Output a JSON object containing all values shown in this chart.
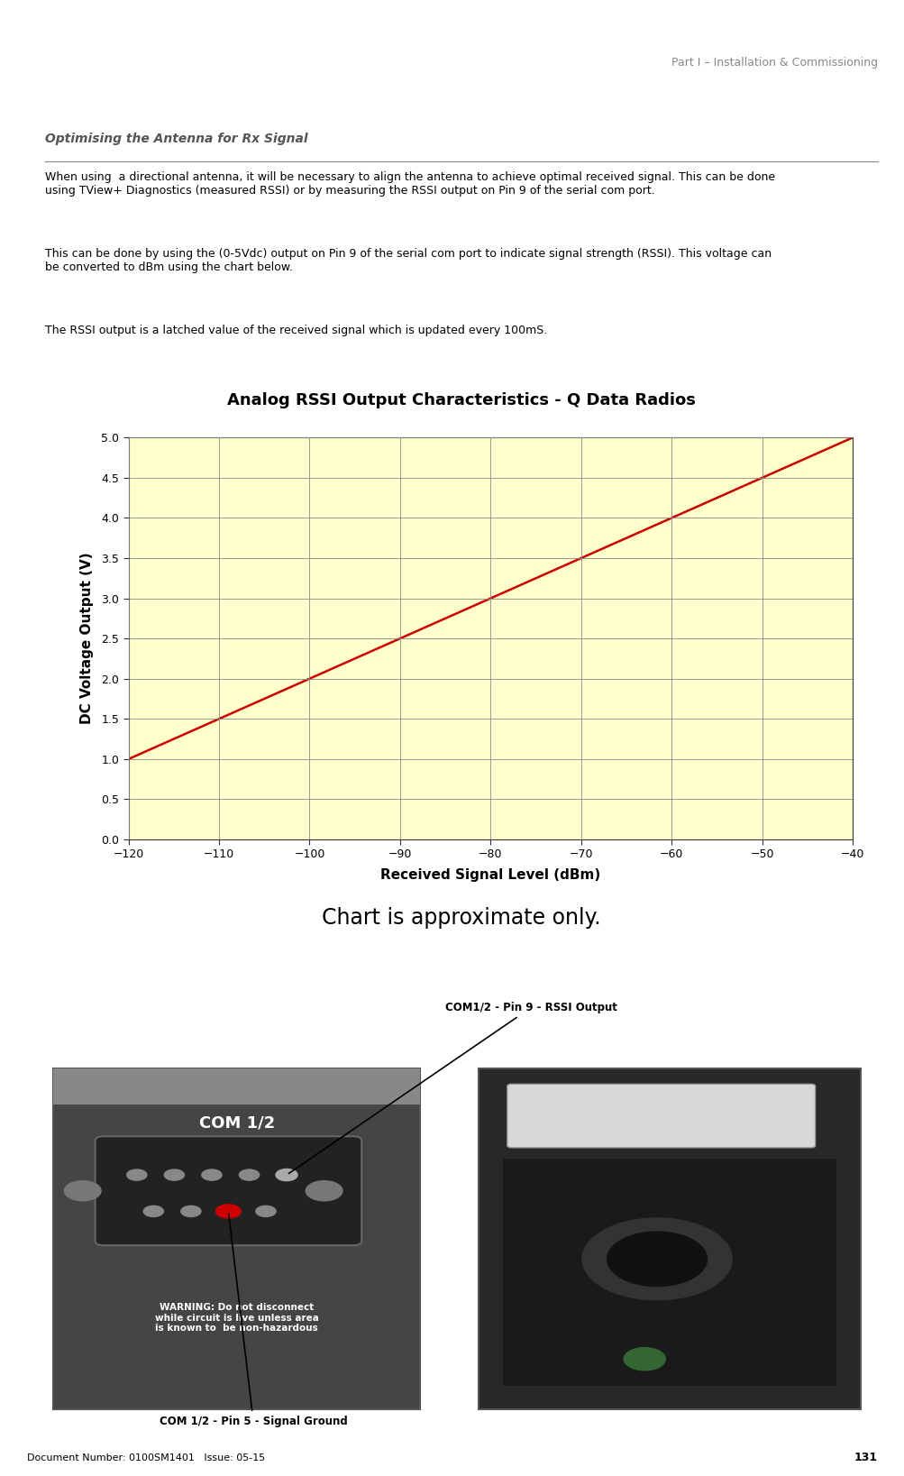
{
  "page_header_right": "Part I – Installation & Commissioning",
  "section_heading": "Optimising the Antenna for Rx Signal",
  "para1": "When using  a directional antenna, it will be necessary to align the antenna to achieve optimal received signal. This can be done\nusing TView+ Diagnostics (measured RSSI) or by measuring the RSSI output on Pin 9 of the serial com port.",
  "para2": "This can be done by using the (0-5Vdc) output on Pin 9 of the serial com port to indicate signal strength (RSSI). This voltage can\nbe converted to dBm using the chart below.",
  "para3": "The RSSI output is a latched value of the received signal which is updated every 100mS.",
  "chart_title": "Analog RSSI Output Characteristics - Q Data Radios",
  "chart_xlabel": "Received Signal Level (dBm)",
  "chart_ylabel": "DC Voltage Output (V)",
  "chart_bg": "#b0b0b0",
  "plot_bg": "#ffffcc",
  "line_color": "#cc0000",
  "line_x": [
    -120,
    -40
  ],
  "line_y": [
    1.0,
    5.0
  ],
  "xlim": [
    -120,
    -40
  ],
  "ylim": [
    0,
    5
  ],
  "xticks": [
    -120,
    -110,
    -100,
    -90,
    -80,
    -70,
    -60,
    -50,
    -40
  ],
  "yticks": [
    0,
    0.5,
    1,
    1.5,
    2,
    2.5,
    3,
    3.5,
    4,
    4.5,
    5
  ],
  "chart_note": "Chart is approximate only.",
  "footer_doc": "Document Number: 0100SM1401   Issue: 05-15",
  "footer_page": "131",
  "annot1_text": "COM1/2 - Pin 9 - RSSI Output",
  "annot2_text": "COM 1/2 - Pin 5 - Signal Ground",
  "page_bg": "#ffffff"
}
